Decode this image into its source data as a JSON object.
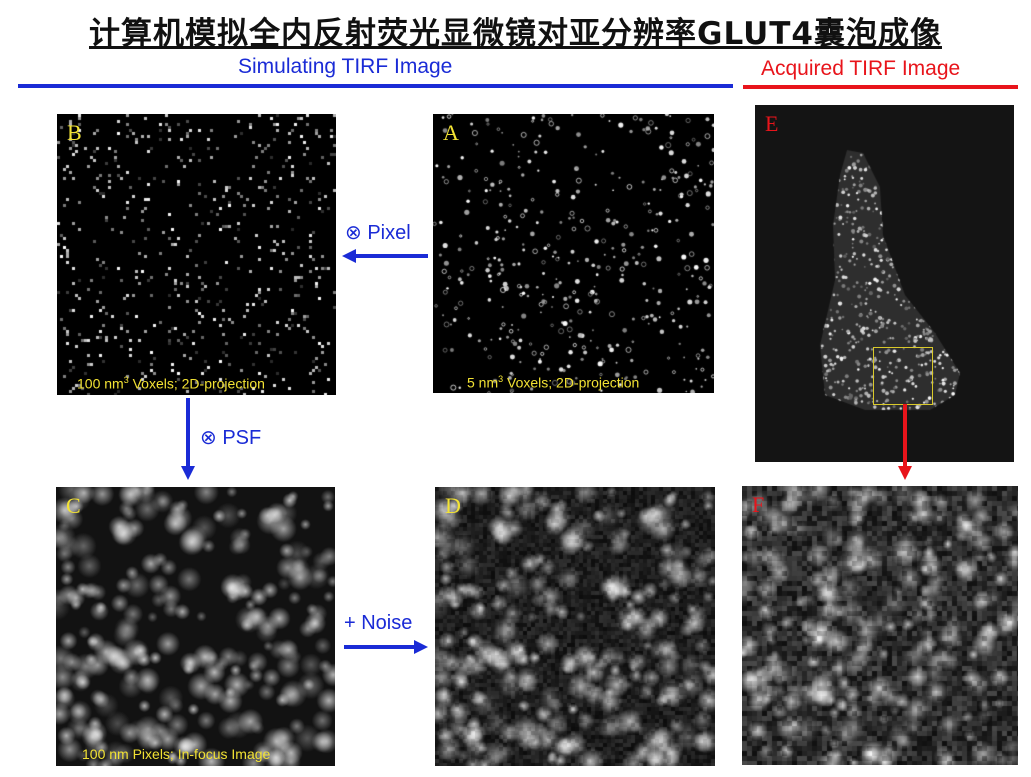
{
  "title": "计算机模拟全内反射荧光显微镜对亚分辨率GLUT4囊泡成像",
  "sections": {
    "simulating": {
      "label": "Simulating TIRF Image"
    },
    "acquired": {
      "label": "Acquired TIRF Image"
    }
  },
  "colors": {
    "simulating": "#1a2bd6",
    "acquired": "#e8141b",
    "panel_label_yellow": "#f2e234",
    "panel_label_red": "#e8141b",
    "roi_box": "#d9c92a"
  },
  "panels": {
    "A": {
      "letter": "A",
      "caption_prefix": "5 nm",
      "caption_sup": "3",
      "caption_suffix": " Voxels; 2D-projection"
    },
    "B": {
      "letter": "B",
      "caption_prefix": "100 nm",
      "caption_sup": "3",
      "caption_suffix": " Voxels; 2D-projection"
    },
    "C": {
      "letter": "C",
      "caption": "100 nm Pixels; In-focus Image"
    },
    "D": {
      "letter": "D"
    },
    "E": {
      "letter": "E"
    },
    "F": {
      "letter": "F"
    }
  },
  "arrows": {
    "pixel": {
      "label": "⊗ Pixel"
    },
    "psf": {
      "label": "⊗ PSF"
    },
    "noise": {
      "label": "+ Noise"
    }
  }
}
